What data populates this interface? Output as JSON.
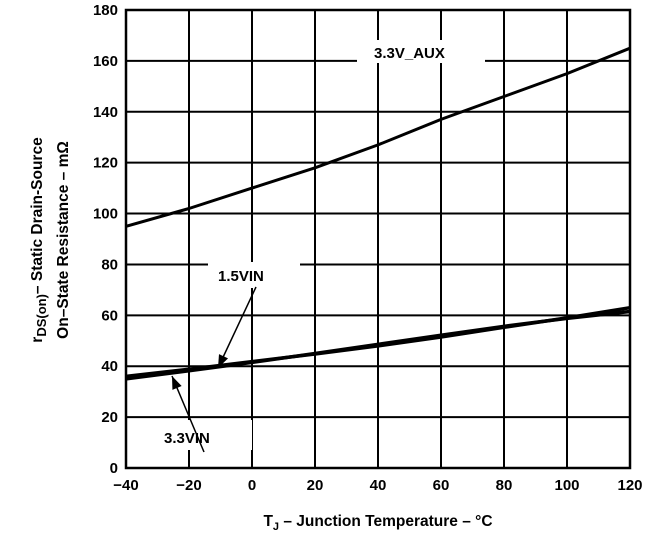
{
  "chart_data": {
    "type": "line",
    "x_range": [
      -40,
      120
    ],
    "y_range": [
      0,
      180
    ],
    "x_ticks": [
      "−40",
      "−20",
      "0",
      "20",
      "40",
      "60",
      "80",
      "100",
      "120"
    ],
    "y_ticks": [
      "0",
      "20",
      "40",
      "60",
      "80",
      "100",
      "120",
      "140",
      "160",
      "180"
    ],
    "x_tick_values": [
      -40,
      -20,
      0,
      20,
      40,
      60,
      80,
      100,
      120
    ],
    "y_tick_values": [
      0,
      20,
      40,
      60,
      80,
      100,
      120,
      140,
      160,
      180
    ],
    "grid": true,
    "xlabel": {
      "t": "T",
      "sub": "J",
      "rest": " – Junction Temperature – °C"
    },
    "ylabel": {
      "line1_r": "r",
      "line1_sub": "DS(on)",
      "line1_rest": "– Static Drain-Source",
      "line2": "On–State Resistance  –  mΩ"
    },
    "series": [
      {
        "name": "3.3V_AUX",
        "x": [
          -40,
          -20,
          0,
          20,
          40,
          60,
          80,
          100,
          120
        ],
        "y": [
          95,
          102,
          110,
          118,
          127,
          137,
          146,
          155,
          165
        ]
      },
      {
        "name": "1.5VIN",
        "x": [
          -40,
          -20,
          0,
          20,
          40,
          60,
          80,
          100,
          120
        ],
        "y": [
          36,
          38.8,
          41.8,
          44.8,
          48,
          51.5,
          55.3,
          59,
          63
        ]
      },
      {
        "name": "3.3VIN",
        "x": [
          -40,
          -20,
          0,
          20,
          40,
          60,
          80,
          100,
          120
        ],
        "y": [
          35,
          38.2,
          41.5,
          45,
          48.6,
          52.2,
          55.7,
          58.8,
          61.5
        ]
      }
    ]
  }
}
